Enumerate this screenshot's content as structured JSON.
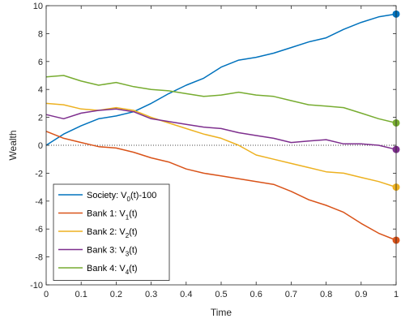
{
  "chart_data": {
    "type": "line",
    "title": "",
    "xlabel": "Time",
    "ylabel": "Wealth",
    "xlim": [
      0,
      1
    ],
    "ylim": [
      -10,
      10
    ],
    "xticks": [
      0,
      0.1,
      0.2,
      0.3,
      0.4,
      0.5,
      0.6,
      0.7,
      0.8,
      0.9,
      1
    ],
    "xtick_labels": [
      "0",
      "0.1",
      "0.2",
      "0.3",
      "0.4",
      "0.5",
      "0.6",
      "0.7",
      "0.8",
      "0.9",
      "1"
    ],
    "yticks": [
      -10,
      -8,
      -6,
      -4,
      -2,
      0,
      2,
      4,
      6,
      8,
      10
    ],
    "ytick_labels": [
      "-10",
      "-8",
      "-6",
      "-4",
      "-2",
      "0",
      "2",
      "4",
      "6",
      "8",
      "10"
    ],
    "grid": false,
    "legend_position": "bottom-left",
    "reference_line": {
      "y": 0,
      "style": "dotted"
    },
    "series": [
      {
        "name": "Society: V0(t)-100",
        "legend": {
          "before": "Society: V",
          "sub": "0",
          "after": "(t)-100"
        },
        "color": "#0072BD",
        "x": [
          0,
          0.05,
          0.1,
          0.15,
          0.2,
          0.25,
          0.3,
          0.35,
          0.4,
          0.45,
          0.5,
          0.55,
          0.6,
          0.65,
          0.7,
          0.75,
          0.8,
          0.85,
          0.9,
          0.95,
          1
        ],
        "y": [
          0,
          0.8,
          1.4,
          1.9,
          2.1,
          2.4,
          3.0,
          3.7,
          4.3,
          4.8,
          5.6,
          6.1,
          6.3,
          6.6,
          7.0,
          7.4,
          7.7,
          8.3,
          8.8,
          9.2,
          9.4
        ]
      },
      {
        "name": "Bank 1: V1(t)",
        "legend": {
          "before": "Bank 1: V",
          "sub": "1",
          "after": "(t)"
        },
        "color": "#D95319",
        "x": [
          0,
          0.05,
          0.1,
          0.15,
          0.2,
          0.25,
          0.3,
          0.35,
          0.4,
          0.45,
          0.5,
          0.55,
          0.6,
          0.65,
          0.7,
          0.75,
          0.8,
          0.85,
          0.9,
          0.95,
          1
        ],
        "y": [
          1.0,
          0.5,
          0.2,
          -0.1,
          -0.2,
          -0.5,
          -0.9,
          -1.2,
          -1.7,
          -2.0,
          -2.2,
          -2.4,
          -2.6,
          -2.8,
          -3.3,
          -3.9,
          -4.3,
          -4.8,
          -5.6,
          -6.3,
          -6.8
        ]
      },
      {
        "name": "Bank 2: V2(t)",
        "legend": {
          "before": "Bank 2: V",
          "sub": "2",
          "after": "(t)"
        },
        "color": "#EDB120",
        "x": [
          0,
          0.05,
          0.1,
          0.15,
          0.2,
          0.25,
          0.3,
          0.35,
          0.4,
          0.45,
          0.5,
          0.55,
          0.6,
          0.65,
          0.7,
          0.75,
          0.8,
          0.85,
          0.9,
          0.95,
          1
        ],
        "y": [
          3.0,
          2.9,
          2.6,
          2.5,
          2.7,
          2.5,
          2.0,
          1.6,
          1.2,
          0.8,
          0.5,
          0.0,
          -0.7,
          -1.0,
          -1.3,
          -1.6,
          -1.9,
          -2.0,
          -2.3,
          -2.6,
          -3.0
        ]
      },
      {
        "name": "Bank 3: V3(t)",
        "legend": {
          "before": "Bank 3: V",
          "sub": "3",
          "after": "(t)"
        },
        "color": "#7E2F8E",
        "x": [
          0,
          0.05,
          0.1,
          0.15,
          0.2,
          0.25,
          0.3,
          0.35,
          0.4,
          0.45,
          0.5,
          0.55,
          0.6,
          0.65,
          0.7,
          0.75,
          0.8,
          0.85,
          0.9,
          0.95,
          1
        ],
        "y": [
          2.2,
          1.9,
          2.3,
          2.5,
          2.6,
          2.4,
          1.9,
          1.7,
          1.5,
          1.3,
          1.2,
          0.9,
          0.7,
          0.5,
          0.2,
          0.3,
          0.4,
          0.1,
          0.1,
          0.0,
          -0.3
        ]
      },
      {
        "name": "Bank 4: V4(t)",
        "legend": {
          "before": "Bank 4: V",
          "sub": "4",
          "after": "(t)"
        },
        "color": "#77AC30",
        "x": [
          0,
          0.05,
          0.1,
          0.15,
          0.2,
          0.25,
          0.3,
          0.35,
          0.4,
          0.45,
          0.5,
          0.55,
          0.6,
          0.65,
          0.7,
          0.75,
          0.8,
          0.85,
          0.9,
          0.95,
          1
        ],
        "y": [
          4.9,
          5.0,
          4.6,
          4.3,
          4.5,
          4.2,
          4.0,
          3.9,
          3.7,
          3.5,
          3.6,
          3.8,
          3.6,
          3.5,
          3.2,
          2.9,
          2.8,
          2.7,
          2.3,
          1.9,
          1.6
        ]
      }
    ]
  }
}
